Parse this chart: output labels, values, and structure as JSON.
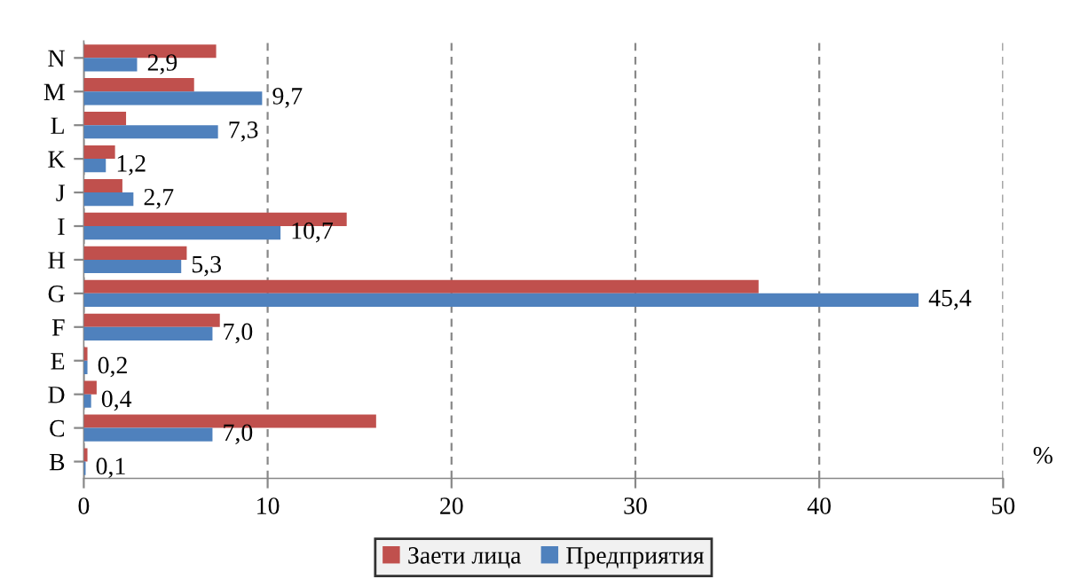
{
  "chart_data": {
    "type": "bar",
    "orientation": "horizontal",
    "xlabel": "%",
    "categories": [
      "N",
      "M",
      "L",
      "K",
      "J",
      "I",
      "H",
      "G",
      "F",
      "E",
      "D",
      "C",
      "B"
    ],
    "series": [
      {
        "name": "Заети лица",
        "color": "#c0504d",
        "values": [
          7.2,
          6.0,
          2.3,
          1.7,
          2.1,
          14.3,
          5.6,
          36.7,
          7.4,
          0.2,
          0.7,
          15.9,
          0.2
        ]
      },
      {
        "name": "Предприятия",
        "color": "#4f81bd",
        "values": [
          2.9,
          9.7,
          7.3,
          1.2,
          2.7,
          10.7,
          5.3,
          45.4,
          7.0,
          0.2,
          0.4,
          7.0,
          0.1
        ],
        "value_labels": [
          "2,9",
          "9,7",
          "7,3",
          "1,2",
          "2,7",
          "10,7",
          "5,3",
          "45,4",
          "7,0",
          "0,2",
          "0,4",
          "7,0",
          "0,1"
        ]
      }
    ],
    "xlim": [
      0,
      50
    ],
    "xticks": [
      0,
      10,
      20,
      30,
      40,
      50
    ],
    "grid": "x",
    "legend": "bottom"
  }
}
